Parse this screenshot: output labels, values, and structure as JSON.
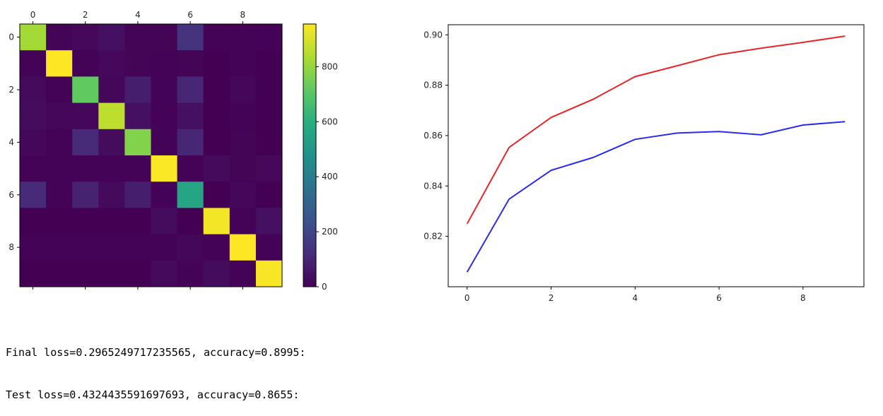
{
  "chart_data": [
    {
      "type": "heatmap",
      "title": "",
      "xlabel": "",
      "ylabel": "",
      "x_ticks": [
        0,
        2,
        4,
        6,
        8
      ],
      "y_ticks": [
        0,
        2,
        4,
        6,
        8
      ],
      "colorscale": "viridis",
      "colorbar": {
        "range": [
          0,
          955
        ],
        "ticks": [
          0,
          200,
          400,
          600,
          800
        ]
      },
      "matrix": [
        [
          820,
          10,
          20,
          40,
          10,
          10,
          140,
          5,
          5,
          5
        ],
        [
          5,
          955,
          5,
          20,
          10,
          5,
          10,
          0,
          5,
          0
        ],
        [
          25,
          5,
          720,
          15,
          80,
          5,
          100,
          0,
          15,
          0
        ],
        [
          30,
          15,
          15,
          860,
          40,
          5,
          40,
          0,
          5,
          0
        ],
        [
          15,
          5,
          110,
          30,
          770,
          5,
          100,
          0,
          10,
          0
        ],
        [
          5,
          5,
          5,
          5,
          5,
          950,
          5,
          25,
          10,
          20
        ],
        [
          110,
          5,
          90,
          25,
          80,
          5,
          560,
          0,
          15,
          0
        ],
        [
          0,
          0,
          0,
          0,
          0,
          30,
          0,
          940,
          5,
          40
        ],
        [
          5,
          5,
          5,
          5,
          5,
          5,
          15,
          5,
          955,
          5
        ],
        [
          0,
          0,
          0,
          0,
          0,
          25,
          5,
          30,
          5,
          945
        ]
      ]
    },
    {
      "type": "line",
      "title": "",
      "xlabel": "",
      "ylabel": "",
      "x": [
        0,
        1,
        2,
        3,
        4,
        5,
        6,
        7,
        8,
        9
      ],
      "xlim": [
        -0.45,
        9.45
      ],
      "ylim": [
        0.8,
        0.904
      ],
      "x_ticks": [
        0,
        2,
        4,
        6,
        8
      ],
      "y_ticks": [
        "0.82",
        "0.84",
        "0.86",
        "0.88",
        "0.90"
      ],
      "series": [
        {
          "color": "#e8262a",
          "values": [
            0.825,
            0.8553,
            0.8672,
            0.8744,
            0.8834,
            0.8877,
            0.8921,
            0.8947,
            0.897,
            0.8995
          ]
        },
        {
          "color": "#2b2bf0",
          "values": [
            0.8058,
            0.8348,
            0.8462,
            0.8513,
            0.8585,
            0.861,
            0.8616,
            0.8603,
            0.8642,
            0.8655
          ]
        }
      ]
    }
  ],
  "output": {
    "line1": "Final loss=0.2965249717235565, accuracy=0.8995:",
    "line2": "Test loss=0.4324435591697693, accuracy=0.8655:"
  }
}
